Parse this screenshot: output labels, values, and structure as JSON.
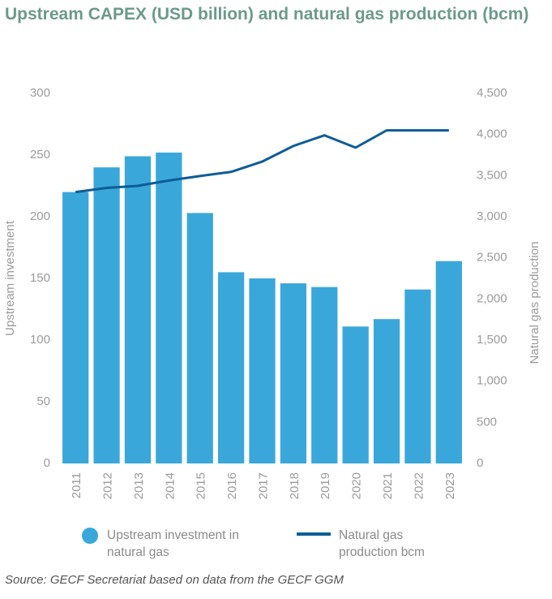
{
  "chart_data": {
    "type": "bar",
    "title": "Upstream CAPEX (USD billion) and natural gas production (bcm)",
    "categories": [
      "2011",
      "2012",
      "2013",
      "2014",
      "2015",
      "2016",
      "2017",
      "2018",
      "2019",
      "2020",
      "2021",
      "2022",
      "2023"
    ],
    "y_label": "Upstream investment",
    "y2_label": "Natural gas production",
    "ylim": [
      0,
      300
    ],
    "yticks": [
      0,
      50,
      100,
      150,
      200,
      250,
      300
    ],
    "y2lim": [
      0,
      4500
    ],
    "y2ticks": [
      0,
      500,
      {
        "value": 1000,
        "label": "1,000"
      },
      {
        "value": 1500,
        "label": "1,500"
      },
      {
        "value": 2000,
        "label": "2,000"
      },
      {
        "value": 2500,
        "label": "2,500"
      },
      {
        "value": 3000,
        "label": "3,000"
      },
      {
        "value": 3500,
        "label": "3,500"
      },
      {
        "value": 4000,
        "label": "4,000"
      },
      {
        "value": 4500,
        "label": "4,500"
      }
    ],
    "series": [
      {
        "name": "Upstream investment in natural gas",
        "type": "bar",
        "color": "#3aa7da",
        "values": [
          220,
          240,
          249,
          252,
          203,
          155,
          150,
          146,
          143,
          111,
          117,
          141,
          164
        ]
      },
      {
        "name": "Natural gas production bcm",
        "type": "line",
        "axis": "y2",
        "color": "#0e5c97",
        "values": [
          3300,
          3350,
          3375,
          3440,
          3495,
          3545,
          3670,
          3860,
          3990,
          3840,
          4050,
          4050,
          4050
        ]
      }
    ],
    "source": "Source: GECF Secretariat based on data from the GECF GGM"
  }
}
